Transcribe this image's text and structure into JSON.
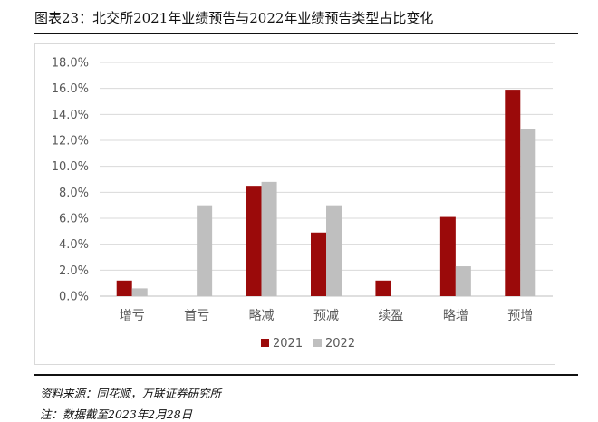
{
  "figure": {
    "title": "图表23：北交所2021年业绩预告与2022年业绩预告类型占比变化",
    "source": "资料来源：同花顺，万联证券研究所",
    "note": "注：数据截至2023年2月28日"
  },
  "colors": {
    "series_2021": "#9b0a0a",
    "series_2022": "#bfbfbf",
    "grid": "#d9d9d9",
    "axis": "#bfbfbf"
  },
  "chart_data": {
    "type": "bar",
    "categories": [
      "增亏",
      "首亏",
      "略减",
      "预减",
      "续盈",
      "略增",
      "预增"
    ],
    "series": [
      {
        "name": "2021",
        "values": [
          1.2,
          0.0,
          8.5,
          4.9,
          1.2,
          6.1,
          15.9
        ]
      },
      {
        "name": "2022",
        "values": [
          0.6,
          7.0,
          8.8,
          7.0,
          0.0,
          2.3,
          12.9
        ]
      }
    ],
    "ylim": [
      0,
      18
    ],
    "yticks": [
      "0.0%",
      "2.0%",
      "4.0%",
      "6.0%",
      "8.0%",
      "10.0%",
      "12.0%",
      "14.0%",
      "16.0%",
      "18.0%"
    ],
    "ytick_values": [
      0,
      2,
      4,
      6,
      8,
      10,
      12,
      14,
      16,
      18
    ],
    "grid": true,
    "legend": "bottom-center"
  }
}
